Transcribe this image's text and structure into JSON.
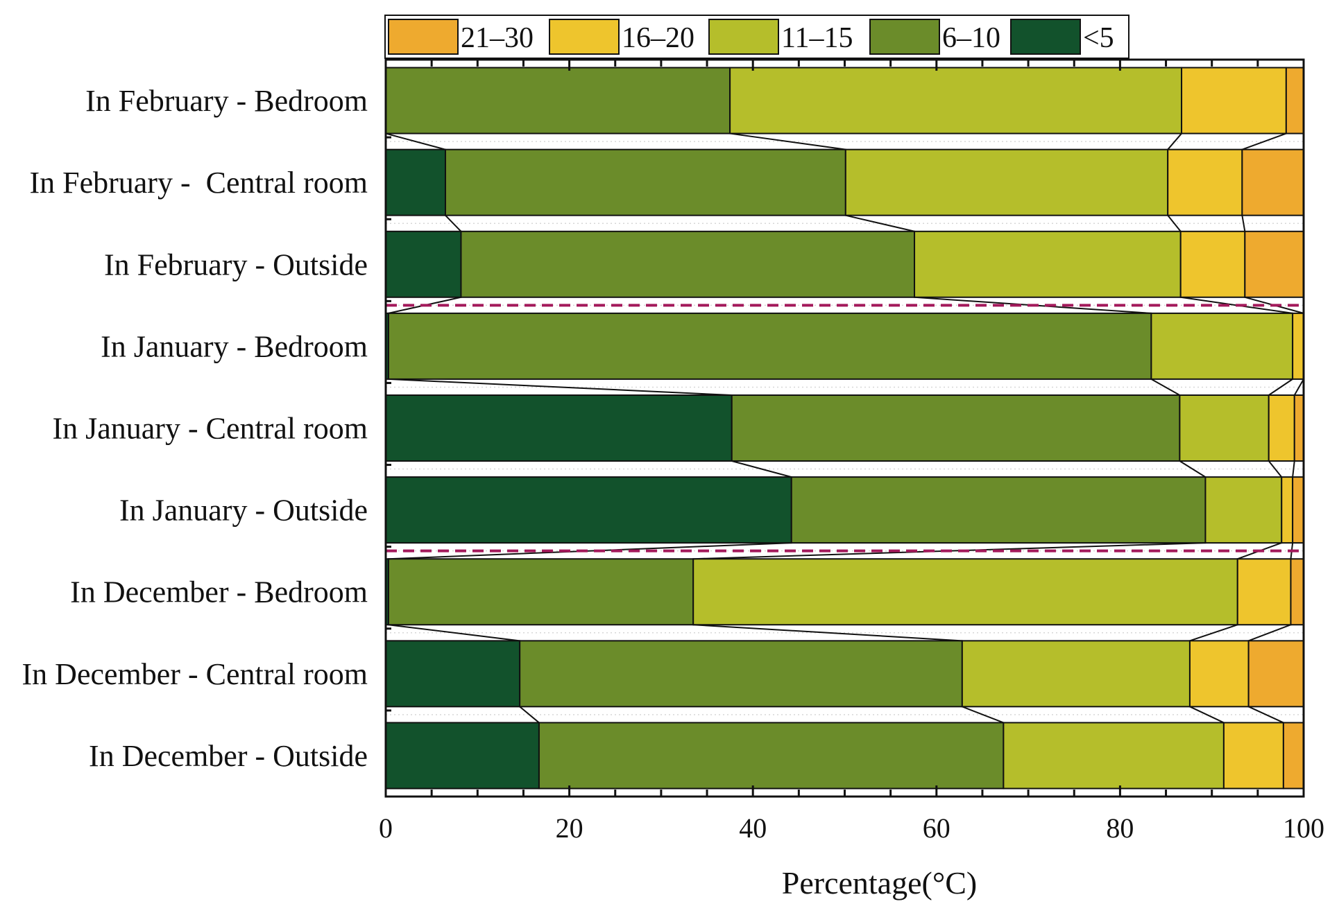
{
  "chart_data": {
    "type": "bar",
    "orientation": "horizontal",
    "stacked": true,
    "xlabel": "Percentage(°C)",
    "xlim": [
      0,
      100
    ],
    "xticks": [
      0,
      20,
      40,
      60,
      80,
      100
    ],
    "xtick_labels": [
      "0",
      "20",
      "40",
      "60",
      "80",
      "100"
    ],
    "grid": false,
    "legend_position": "top",
    "categories": [
      "In February - Bedroom",
      "In February -  Central room",
      "In February - Outside",
      "In January - Bedroom",
      "In January - Central room",
      "In January - Outside",
      "In December - Bedroom",
      "In December - Central room",
      "In December - Outside"
    ],
    "series": [
      {
        "name": "<5",
        "color": "#12522C",
        "values": [
          0,
          6.5,
          8.2,
          0.3,
          37.7,
          44.2,
          0.3,
          14.6,
          16.7
        ]
      },
      {
        "name": "6–10",
        "color": "#6B8C2A",
        "values": [
          37.5,
          43.6,
          49.4,
          83.1,
          48.8,
          45.1,
          33.2,
          48.2,
          50.6
        ]
      },
      {
        "name": "11–15",
        "color": "#B5BE2B",
        "values": [
          49.2,
          35.1,
          29.0,
          15.4,
          9.7,
          8.3,
          59.3,
          24.8,
          24.0
        ]
      },
      {
        "name": "16–20",
        "color": "#EEC52D",
        "values": [
          11.4,
          8.1,
          7.0,
          1.2,
          2.8,
          1.2,
          5.8,
          6.4,
          6.5
        ]
      },
      {
        "name": "21–30",
        "color": "#EEAA2F",
        "values": [
          1.9,
          6.7,
          6.4,
          0,
          1.0,
          1.2,
          1.4,
          6.0,
          2.2
        ]
      }
    ],
    "legend_order": [
      "21–30",
      "16–20",
      "11–15",
      "6–10",
      "<5"
    ],
    "separators_after": [
      "In February - Outside",
      "In January - Outside"
    ],
    "separator_color": "#A3195B"
  }
}
